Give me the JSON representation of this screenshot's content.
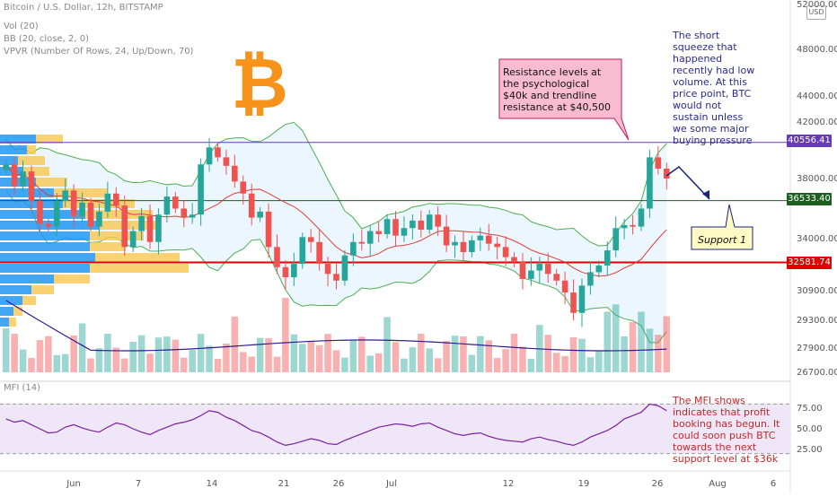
{
  "header": {
    "symbol": "Bitcoin / U.S. Dollar, 12h, BITSTAMP",
    "vol": "Vol (20)",
    "bb": "BB (20, close, 2, 0)",
    "vpvr": "VPVR (Number Of Rows, 24, Up/Down, 70)",
    "mfi": "MFI (14)"
  },
  "currency_badge": "USD",
  "annotations": {
    "resistance": "Resistance levels at the psychological $40k and trendline resistance at $40,500",
    "squeeze": "The short squeeze that happened recently had low volume. At this price point, BTC would not sustain unless we some major buying pressure",
    "support": "Support 1",
    "mfi_note": "The MFI shows indicates that profit booking has begun. It could soon push BTC towards the next support level at $36k"
  },
  "colors": {
    "up": "#26a69a",
    "down": "#ef5350",
    "resistance_line": "#673ab7",
    "support_line": "#1b5e20",
    "red_line": "#e00000",
    "bb_band": "#4caf50",
    "bb_basis": "#e53935",
    "bitcoin_logo": "#f7931a",
    "mfi_band": "#efe7f7"
  },
  "chart_data": [
    {
      "type": "line",
      "title": "Bitcoin / U.S. Dollar, 12h, BITSTAMP",
      "ylabel": "USD",
      "ylim": [
        26700,
        52000
      ],
      "y_ticks": [
        52000,
        48000,
        44000,
        42000,
        38000,
        34000,
        30900,
        29300,
        27900,
        26700
      ],
      "y_tick_labels": [
        "52000.00",
        "48000.00",
        "44000.00",
        "42000.00",
        "38000.00",
        "34000.00",
        "30900.00",
        "29300.00",
        "27900.00",
        "26700.00"
      ],
      "x_ticks": [
        "Jun",
        "7",
        "14",
        "21",
        "26",
        "Jul",
        "12",
        "19",
        "26",
        "Aug",
        "6"
      ],
      "horizontal_levels": [
        {
          "name": "resistance",
          "value": 40556.41,
          "label": "40556.41"
        },
        {
          "name": "support",
          "value": 36533.4,
          "label": "36533.40"
        },
        {
          "name": "key-support",
          "value": 32581.74,
          "label": "32581.74"
        }
      ],
      "series": [
        {
          "kind": "close",
          "values": [
            39000,
            37500,
            38500,
            36500,
            35000,
            34800,
            36500,
            37200,
            35500,
            36400,
            34800,
            35800,
            37000,
            36200,
            33500,
            34500,
            35500,
            33800,
            35600,
            36800,
            36000,
            35400,
            35600,
            39000,
            40200,
            39500,
            38900,
            37800,
            37000,
            35400,
            35800,
            33500,
            32300,
            31700,
            32500,
            34100,
            33800,
            32500,
            31900,
            31500,
            33000,
            33800,
            33700,
            34500,
            34300,
            35300,
            34200,
            34700,
            35200,
            34600,
            35600,
            34800,
            33600,
            33800,
            33200,
            33900,
            34200,
            33700,
            33500,
            32900,
            32600,
            31600,
            32100,
            32500,
            31900,
            31500,
            30800,
            29700,
            31200,
            32000,
            32400,
            33300,
            34700,
            34900,
            34800,
            36000,
            39500,
            38700,
            38000
          ]
        }
      ]
    },
    {
      "type": "bar",
      "title": "Vol (20)",
      "y_ticks": [],
      "note": "volume bars and moving average, relative units"
    },
    {
      "type": "line",
      "title": "MFI (14)",
      "ylim": [
        0,
        100
      ],
      "y_ticks": [
        75,
        50,
        25
      ],
      "y_tick_labels": [
        "75.00",
        "50.00",
        "25.00"
      ],
      "band": [
        20,
        80
      ],
      "series": [
        {
          "values": [
            62,
            58,
            60,
            55,
            50,
            45,
            46,
            52,
            55,
            51,
            48,
            46,
            52,
            57,
            55,
            50,
            46,
            43,
            48,
            52,
            56,
            58,
            61,
            66,
            72,
            70,
            64,
            60,
            54,
            48,
            45,
            40,
            34,
            30,
            32,
            35,
            38,
            36,
            32,
            31,
            36,
            40,
            44,
            48,
            52,
            54,
            56,
            55,
            53,
            56,
            57,
            52,
            48,
            44,
            42,
            44,
            45,
            41,
            38,
            36,
            35,
            34,
            38,
            40,
            37,
            35,
            32,
            30,
            34,
            40,
            44,
            48,
            54,
            62,
            66,
            70,
            80,
            78,
            72
          ]
        }
      ]
    }
  ]
}
